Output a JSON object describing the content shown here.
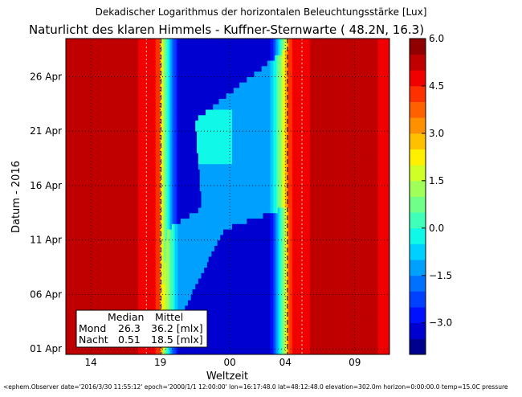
{
  "chart_data": {
    "type": "heatmap",
    "suptitle": "Dekadischer Logarithmus der horizontalen Beleuchtungsstärke [Lux]",
    "title": "Naturlicht des klaren Himmels - Kuffner-Sternwarte ( 48.2N, 16.3)",
    "xlabel": "Weltzeit",
    "ylabel": "Datum - 2016",
    "x_ticks": [
      "14",
      "19",
      "00",
      "04",
      "09"
    ],
    "x_tick_hours": [
      14,
      19,
      24,
      28,
      33
    ],
    "xlim_hours": [
      12.2,
      35.5
    ],
    "y_ticks": [
      "01 Apr",
      "06 Apr",
      "11 Apr",
      "16 Apr",
      "21 Apr",
      "26 Apr"
    ],
    "y_tick_days": [
      1,
      6,
      11,
      16,
      21,
      26
    ],
    "ylim_days": [
      0.5,
      29.5
    ],
    "grid": true,
    "colorbar": {
      "ticks": [
        "6.0",
        "4.5",
        "3.0",
        "1.5",
        "0.0",
        "−1.5",
        "−3.0"
      ],
      "tick_values": [
        6.0,
        4.5,
        3.0,
        1.5,
        0.0,
        -1.5,
        -3.0
      ],
      "range": [
        -4.0,
        6.0
      ],
      "levels": [
        -4.0,
        -3.5,
        -3.0,
        -2.5,
        -2.0,
        -1.5,
        -1.0,
        -0.5,
        0.0,
        0.5,
        1.0,
        1.5,
        2.0,
        2.5,
        3.0,
        3.5,
        4.0,
        4.5,
        5.0,
        5.5,
        6.0
      ],
      "colors": [
        "#00008f",
        "#0000d0",
        "#0011ff",
        "#0040ff",
        "#0070ff",
        "#00a0ff",
        "#00d0ff",
        "#10f8e8",
        "#40ffb8",
        "#70ff88",
        "#a0ff58",
        "#d0ff28",
        "#fff000",
        "#ffc000",
        "#ff9000",
        "#ff6000",
        "#ff3000",
        "#f00000",
        "#c00000",
        "#900000"
      ]
    },
    "day_region": {
      "sunset_hour": 18.9,
      "sunrise_hour": 28.3,
      "value": 5.2
    },
    "night_value_no_moon": -3.3,
    "moon_region_value": -1.2,
    "table": {
      "headers": [
        "Median",
        "Mittel"
      ],
      "rows": [
        {
          "label": "Mond",
          "median": "26.3",
          "mittel": "36.2 [mlx]"
        },
        {
          "label": "Nacht",
          "median": "0.51",
          "mittel": "18.5 [mlx]"
        }
      ]
    }
  },
  "footer": "<ephem.Observer date='2016/3/30 11:55:12' epoch='2000/1/1 12:00:00' lon=16:17:48.0 lat=48:12:48.0 elevation=302.0m horizon=0:00:00.0 temp=15.0C pressure"
}
